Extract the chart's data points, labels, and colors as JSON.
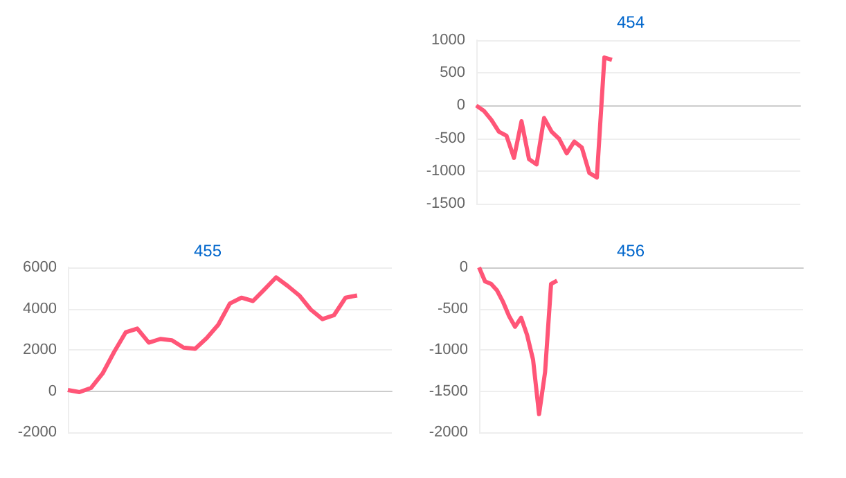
{
  "chart_data": [
    {
      "type": "line",
      "title": "454",
      "categories": [
        null,
        null,
        null,
        null,
        null,
        null,
        null,
        null,
        null,
        null,
        null,
        null,
        null,
        null,
        null,
        null,
        null,
        null,
        null,
        null,
        null,
        null,
        null,
        null,
        null,
        null,
        null,
        null,
        null,
        null,
        null,
        null,
        null,
        null,
        null,
        null,
        null,
        null,
        null,
        null,
        null,
        null,
        null,
        null
      ],
      "values": [
        0,
        -80,
        -220,
        -400,
        -460,
        -800,
        -240,
        -820,
        -900,
        -190,
        -400,
        -510,
        -730,
        -550,
        -640,
        -1030,
        -1100,
        735,
        700,
        null,
        null,
        null,
        null,
        null,
        null,
        null,
        null,
        null,
        null,
        null,
        null,
        null,
        null,
        null,
        null,
        null,
        null,
        null,
        null,
        null,
        null,
        null,
        null,
        null
      ],
      "color": "#ff5577",
      "ylim": [
        -1500,
        1000
      ],
      "yticks": [
        -1500,
        -1000,
        -500,
        0,
        500,
        1000
      ],
      "grid": "y",
      "tick_labels": "y"
    },
    {
      "type": "line",
      "title": "455",
      "categories": [
        null,
        null,
        null,
        null,
        null,
        null,
        null,
        null,
        null,
        null,
        null,
        null,
        null,
        null,
        null,
        null,
        null,
        null,
        null,
        null,
        null,
        null,
        null,
        null,
        null,
        null,
        null,
        null,
        null
      ],
      "values": [
        50,
        -50,
        150,
        850,
        1900,
        2850,
        3030,
        2350,
        2530,
        2460,
        2110,
        2050,
        2570,
        3220,
        4250,
        4530,
        4370,
        4940,
        5520,
        5100,
        4640,
        3950,
        3490,
        3680,
        4530,
        4640,
        null,
        null,
        null
      ],
      "color": "#ff5577",
      "ylim": [
        -2000,
        6000
      ],
      "yticks": [
        -2000,
        0,
        2000,
        4000,
        6000
      ],
      "grid": "y",
      "tick_labels": "y"
    },
    {
      "type": "line",
      "title": "456",
      "categories": [
        null,
        null,
        null,
        null,
        null,
        null,
        null,
        null,
        null,
        null,
        null,
        null,
        null,
        null,
        null,
        null,
        null,
        null,
        null,
        null,
        null,
        null,
        null,
        null,
        null,
        null,
        null,
        null,
        null,
        null,
        null,
        null,
        null,
        null,
        null,
        null,
        null,
        null,
        null,
        null,
        null,
        null,
        null,
        null,
        null,
        null,
        null,
        null,
        null,
        null,
        null,
        null,
        null,
        null,
        null
      ],
      "values": [
        0,
        -170,
        -200,
        -280,
        -420,
        -590,
        -720,
        -610,
        -820,
        -1120,
        -1780,
        -1270,
        -200,
        -160,
        null,
        null,
        null,
        null,
        null,
        null,
        null,
        null,
        null,
        null,
        null,
        null,
        null,
        null,
        null,
        null,
        null,
        null,
        null,
        null,
        null,
        null,
        null,
        null,
        null,
        null,
        null,
        null,
        null,
        null,
        null,
        null,
        null,
        null,
        null,
        null,
        null,
        null,
        null,
        null,
        null
      ],
      "color": "#ff5577",
      "ylim": [
        -2000,
        0
      ],
      "yticks": [
        -2000,
        -1500,
        -1000,
        -500,
        0
      ],
      "grid": "y",
      "tick_labels": "y"
    }
  ]
}
